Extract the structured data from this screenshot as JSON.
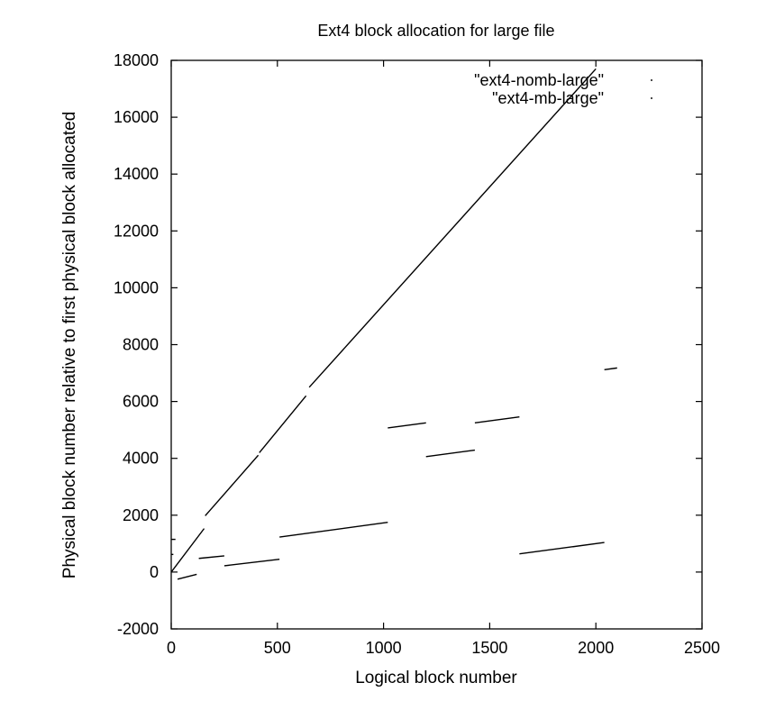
{
  "chart_data": {
    "type": "line",
    "title": "Ext4 block allocation for large file",
    "xlabel": "Logical block number",
    "ylabel": "Physical block number relative to first physical block allocated",
    "xlim": [
      0,
      2500
    ],
    "ylim": [
      -2000,
      18000
    ],
    "xticks": [
      0,
      500,
      1000,
      1500,
      2000,
      2500
    ],
    "yticks": [
      -2000,
      0,
      2000,
      4000,
      6000,
      8000,
      10000,
      12000,
      14000,
      16000,
      18000
    ],
    "grid": false,
    "legend_position": "top-right",
    "series": [
      {
        "name": "\"ext4-nomb-large\"",
        "color": "#000000",
        "segments": [
          {
            "x": [
              0,
              155
            ],
            "y": [
              0,
              1530
            ]
          },
          {
            "x": [
              160,
              410
            ],
            "y": [
              1980,
              4110
            ]
          },
          {
            "x": [
              415,
              635
            ],
            "y": [
              4200,
              6200
            ]
          },
          {
            "x": [
              650,
              2000
            ],
            "y": [
              6500,
              17700
            ]
          }
        ]
      },
      {
        "name": "\"ext4-mb-large\"",
        "color": "#000000",
        "segments": [
          {
            "x": [
              0,
              20
            ],
            "y": [
              1150,
              1150
            ]
          },
          {
            "x": [
              0,
              10
            ],
            "y": [
              620,
              620
            ]
          },
          {
            "x": [
              30,
              120
            ],
            "y": [
              -250,
              -80
            ]
          },
          {
            "x": [
              130,
              250
            ],
            "y": [
              480,
              570
            ]
          },
          {
            "x": [
              250,
              510
            ],
            "y": [
              220,
              450
            ]
          },
          {
            "x": [
              510,
              1020
            ],
            "y": [
              1230,
              1750
            ]
          },
          {
            "x": [
              1020,
              1200
            ],
            "y": [
              5070,
              5250
            ]
          },
          {
            "x": [
              1200,
              1430
            ],
            "y": [
              4060,
              4290
            ]
          },
          {
            "x": [
              1430,
              1640
            ],
            "y": [
              5250,
              5460
            ]
          },
          {
            "x": [
              1640,
              2040
            ],
            "y": [
              640,
              1040
            ]
          },
          {
            "x": [
              2040,
              2100
            ],
            "y": [
              7120,
              7180
            ]
          }
        ]
      }
    ]
  }
}
